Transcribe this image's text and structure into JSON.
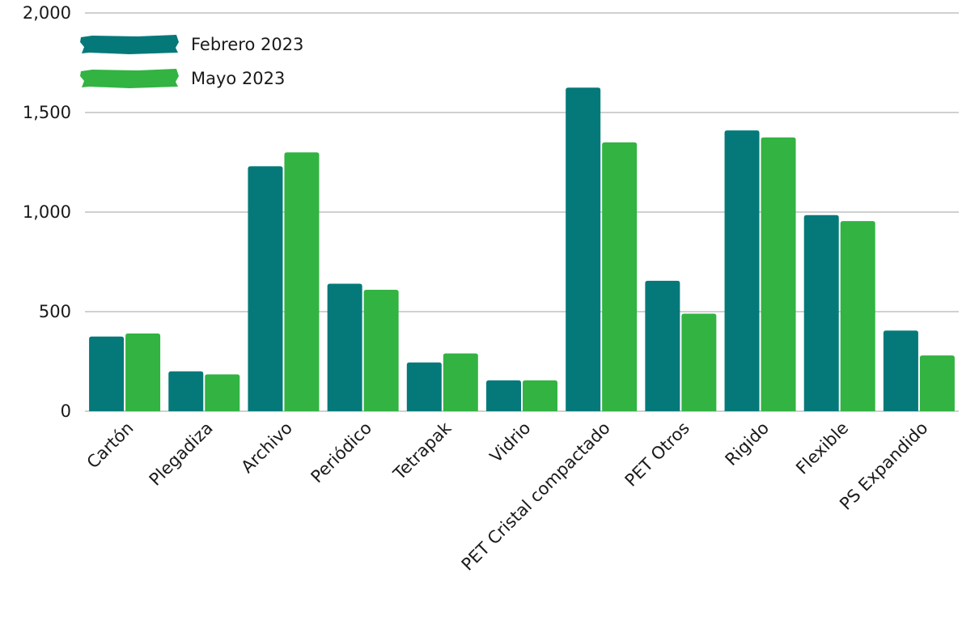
{
  "chart_data": {
    "type": "bar",
    "title": "",
    "xlabel": "",
    "ylabel": "",
    "ylim": [
      0,
      2000
    ],
    "y_ticks": [
      0,
      500,
      1000,
      1500,
      2000
    ],
    "y_tick_labels": [
      "0",
      "500",
      "1,000",
      "1,500",
      "2,000"
    ],
    "grid": true,
    "legend_position": "top-left",
    "categories": [
      "Cartón",
      "Plegadiza",
      "Archivo",
      "Periódico",
      "Tetrapak",
      "Vidrio",
      "PET Cristal compactado",
      "PET Otros",
      "Rigido",
      "Flexible",
      "PS Expandido"
    ],
    "series": [
      {
        "name": "Febrero 2023",
        "color": "#057979",
        "values": [
          375,
          200,
          1230,
          640,
          245,
          155,
          1625,
          655,
          1410,
          985,
          405
        ]
      },
      {
        "name": "Mayo 2023",
        "color": "#32b342",
        "values": [
          390,
          185,
          1300,
          610,
          290,
          155,
          1350,
          490,
          1375,
          955,
          280
        ]
      }
    ]
  }
}
